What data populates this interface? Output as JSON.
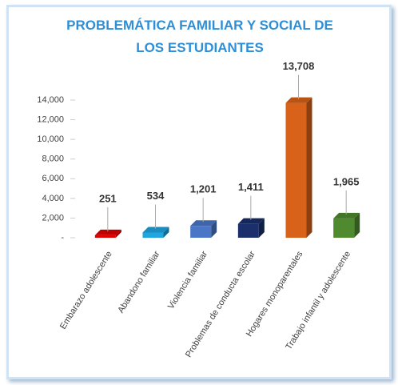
{
  "chart_data": {
    "type": "bar",
    "title": "PROBLEMÁTICA FAMILIAR Y SOCIAL DE LOS ESTUDIANTES",
    "categories": [
      "Embarazo adolescente",
      "Abandono familiar",
      "Violencia familiar",
      "Problemas de conducta escolar",
      "Hogares monoparentales",
      "Trabajo infantil y adolescente"
    ],
    "values": [
      251,
      534,
      1201,
      1411,
      13708,
      1965
    ],
    "value_labels": [
      "251",
      "534",
      "1,201",
      "1,411",
      "13,708",
      "1,965"
    ],
    "colors": [
      "#e00000",
      "#1ea6e0",
      "#4a76c8",
      "#1a2f6b",
      "#d8621a",
      "#4f8a2f"
    ],
    "ylim": [
      0,
      14000
    ],
    "yticks": [
      {
        "value": 0,
        "label": "-"
      },
      {
        "value": 2000,
        "label": "2,000"
      },
      {
        "value": 4000,
        "label": "4,000"
      },
      {
        "value": 6000,
        "label": "6,000"
      },
      {
        "value": 8000,
        "label": "8,000"
      },
      {
        "value": 10000,
        "label": "10,000"
      },
      {
        "value": 12000,
        "label": "12,000"
      },
      {
        "value": 14000,
        "label": "14,000"
      }
    ],
    "grid": false
  }
}
